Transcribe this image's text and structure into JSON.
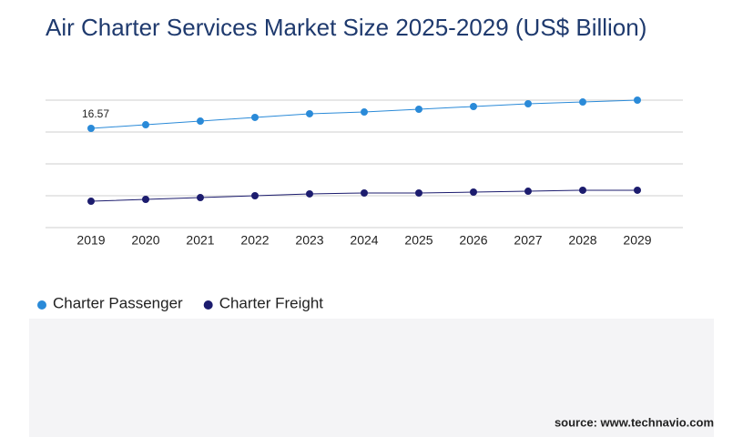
{
  "chart_data": {
    "type": "line",
    "title": "Air Charter Services Market Size 2025-2029 (US$ Billion)",
    "categories": [
      "2019",
      "2020",
      "2021",
      "2022",
      "2023",
      "2024",
      "2025",
      "2026",
      "2027",
      "2028",
      "2029"
    ],
    "series": [
      {
        "name": "Charter Passenger",
        "color": "#2a8ad8",
        "values": [
          16.57,
          17.14,
          17.71,
          18.29,
          18.86,
          19.14,
          19.57,
          20.0,
          20.43,
          20.71,
          21.0
        ]
      },
      {
        "name": "Charter Freight",
        "color": "#1c1c6e",
        "values": [
          5.14,
          5.43,
          5.71,
          6.0,
          6.29,
          6.43,
          6.43,
          6.57,
          6.71,
          6.86,
          6.86
        ]
      }
    ],
    "ylim": [
      1,
      21
    ],
    "yticks": [
      1,
      6,
      11,
      16,
      21
    ],
    "grid": true,
    "data_labels": [
      {
        "series": 0,
        "index": 0
      }
    ],
    "source": "source: www.technavio.com"
  }
}
